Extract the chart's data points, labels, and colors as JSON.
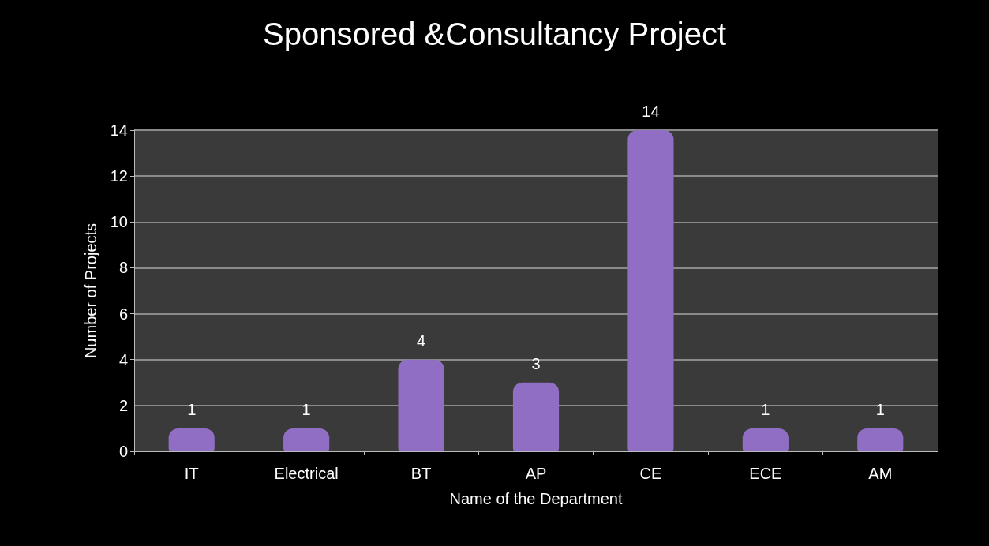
{
  "chart_data": {
    "type": "bar",
    "title": "Sponsored &Consultancy Project",
    "xlabel": "Name of the Department",
    "ylabel": "Number of Projects",
    "categories": [
      "IT",
      "Electrical",
      "BT",
      "AP",
      "CE",
      "ECE",
      "AM"
    ],
    "values": [
      1,
      1,
      4,
      3,
      14,
      1,
      1
    ],
    "color": "#8f6ec4",
    "ylim": [
      0,
      14
    ],
    "yticks": [
      0,
      2,
      4,
      6,
      8,
      10,
      12,
      14
    ],
    "grid": "y",
    "data_labels": true
  }
}
